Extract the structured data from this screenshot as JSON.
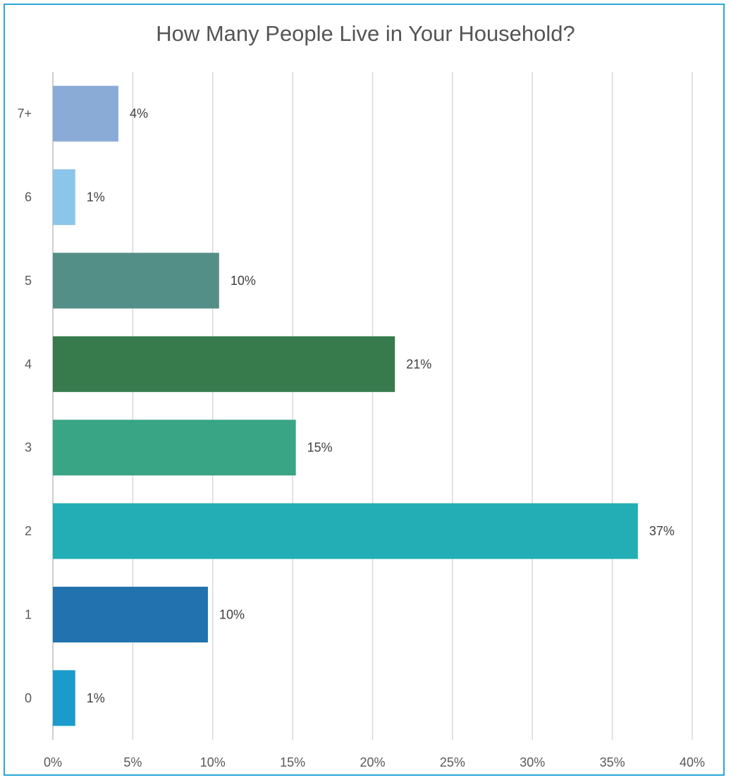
{
  "chart_data": {
    "type": "bar",
    "orientation": "horizontal",
    "title": "How Many People Live in Your Household?",
    "xlabel": "",
    "ylabel": "",
    "categories": [
      "0",
      "1",
      "2",
      "3",
      "4",
      "5",
      "6",
      "7+"
    ],
    "values": [
      1.4,
      9.7,
      36.6,
      15.2,
      21.4,
      10.4,
      1.4,
      4.1
    ],
    "data_labels": [
      "1%",
      "10%",
      "37%",
      "15%",
      "21%",
      "10%",
      "1%",
      "4%"
    ],
    "colors": [
      "#1b9bcb",
      "#2172ae",
      "#23aeb5",
      "#3aa585",
      "#377b4d",
      "#548f87",
      "#8cc5ea",
      "#8aabd6"
    ],
    "xlim": [
      0,
      40
    ],
    "xticks": [
      "0%",
      "5%",
      "10%",
      "15%",
      "20%",
      "25%",
      "30%",
      "35%",
      "40%"
    ],
    "grid": "vertical",
    "legend": "none"
  }
}
